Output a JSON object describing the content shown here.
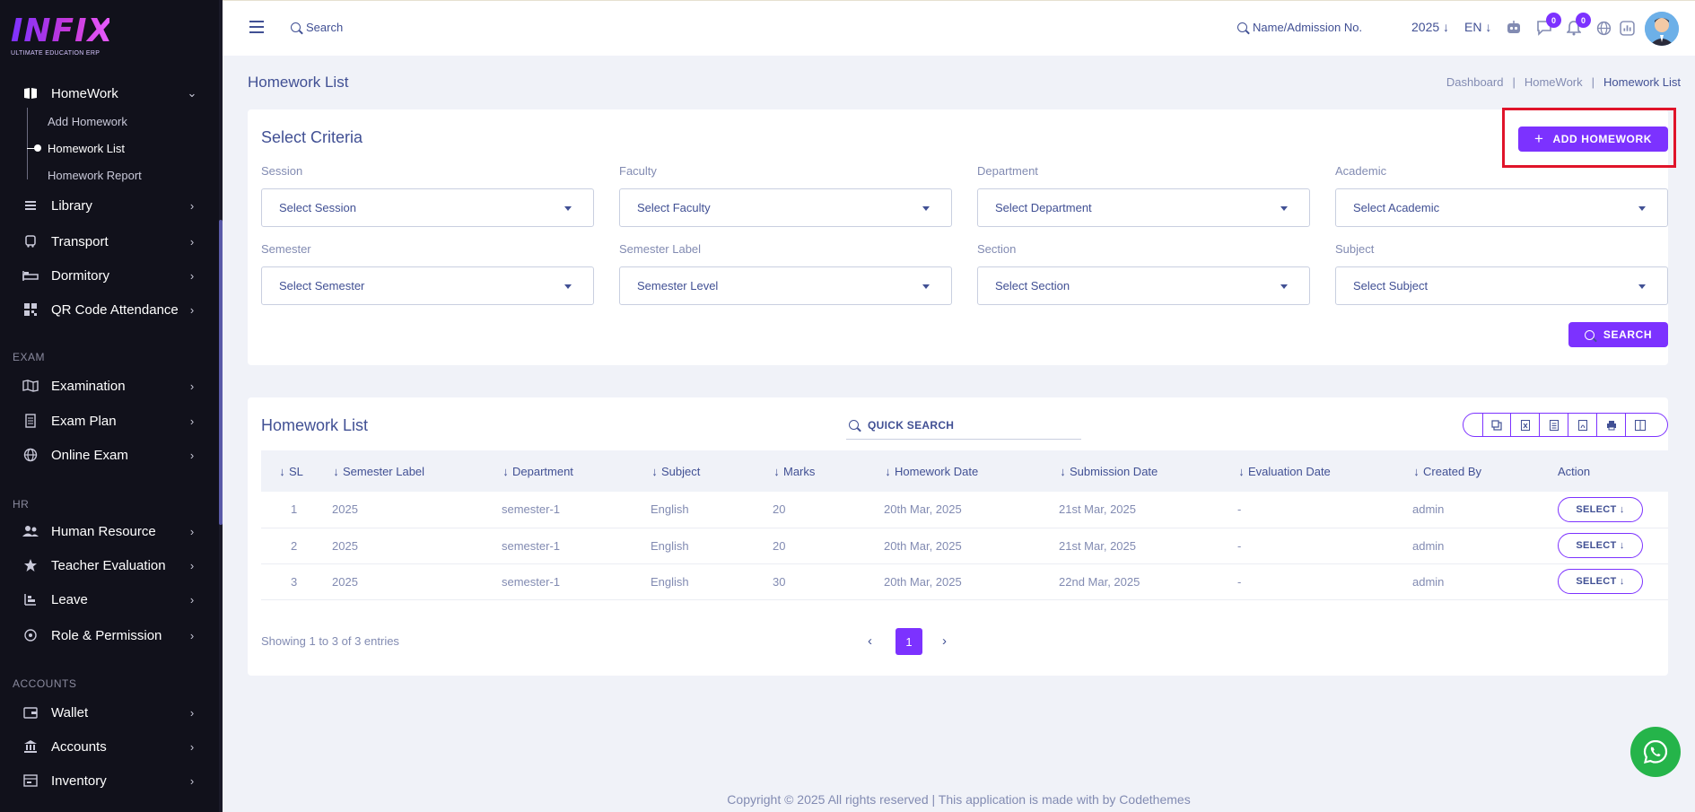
{
  "logo": {
    "text": "INFIX",
    "tagline": "ULTIMATE EDUCATION ERP"
  },
  "sidebar": {
    "homework": "HomeWork",
    "sub_items": [
      "Add Homework",
      "Homework List",
      "Homework Report"
    ],
    "items_top": [
      "Library",
      "Transport",
      "Dormitory",
      "QR Code Attendance"
    ],
    "section_exam": "EXAM",
    "items_exam": [
      "Examination",
      "Exam Plan",
      "Online Exam"
    ],
    "section_hr": "HR",
    "items_hr": [
      "Human Resource",
      "Teacher Evaluation",
      "Leave",
      "Role & Permission"
    ],
    "section_accounts": "ACCOUNTS",
    "items_accounts": [
      "Wallet",
      "Accounts",
      "Inventory"
    ]
  },
  "header": {
    "search_label": "Search",
    "admission_search": "Name/Admission No.",
    "year": "2025",
    "lang": "EN",
    "chat_count": "0",
    "notif_count": "0"
  },
  "page": {
    "title": "Homework List",
    "breadcrumb": [
      "Dashboard",
      "HomeWork",
      "Homework List"
    ]
  },
  "criteria": {
    "title": "Select Criteria",
    "add_button": "ADD HOMEWORK",
    "search_button": "SEARCH",
    "fields": [
      {
        "label": "Session",
        "value": "Select Session"
      },
      {
        "label": "Faculty",
        "value": "Select Faculty"
      },
      {
        "label": "Department",
        "value": "Select Department"
      },
      {
        "label": "Academic",
        "value": "Select Academic"
      },
      {
        "label": "Semester",
        "value": "Select Semester"
      },
      {
        "label": "Semester Label",
        "value": "Semester Level"
      },
      {
        "label": "Section",
        "value": "Select Section"
      },
      {
        "label": "Subject",
        "value": "Select Subject"
      }
    ]
  },
  "list": {
    "title": "Homework List",
    "quick_search": "QUICK SEARCH",
    "export_icons": [
      "copy-icon",
      "excel-icon",
      "csv-icon",
      "pdf-icon",
      "print-icon",
      "columns-icon"
    ],
    "columns": [
      "SL",
      "Semester Label",
      "Department",
      "Subject",
      "Marks",
      "Homework Date",
      "Submission Date",
      "Evaluation Date",
      "Created By",
      "Action"
    ],
    "rows": [
      {
        "sl": "1",
        "semester_label": "2025",
        "department": "semester-1",
        "subject": "English",
        "marks": "20",
        "homework_date": "20th Mar, 2025",
        "submission_date": "21st Mar, 2025",
        "evaluation_date": "-",
        "created_by": "admin",
        "action": "SELECT"
      },
      {
        "sl": "2",
        "semester_label": "2025",
        "department": "semester-1",
        "subject": "English",
        "marks": "20",
        "homework_date": "20th Mar, 2025",
        "submission_date": "21st Mar, 2025",
        "evaluation_date": "-",
        "created_by": "admin",
        "action": "SELECT"
      },
      {
        "sl": "3",
        "semester_label": "2025",
        "department": "semester-1",
        "subject": "English",
        "marks": "30",
        "homework_date": "20th Mar, 2025",
        "submission_date": "22nd Mar, 2025",
        "evaluation_date": "-",
        "created_by": "admin",
        "action": "SELECT"
      }
    ],
    "showing": "Showing 1 to 3 of 3 entries",
    "page": "1"
  },
  "footer": "Copyright © 2025 All rights reserved | This application is made with by Codethemes",
  "colors": {
    "accent": "#7c32ff",
    "sidebar_bg": "#11111b",
    "text": "#415094",
    "highlight": "#e0142a",
    "whatsapp": "#25b44a"
  }
}
